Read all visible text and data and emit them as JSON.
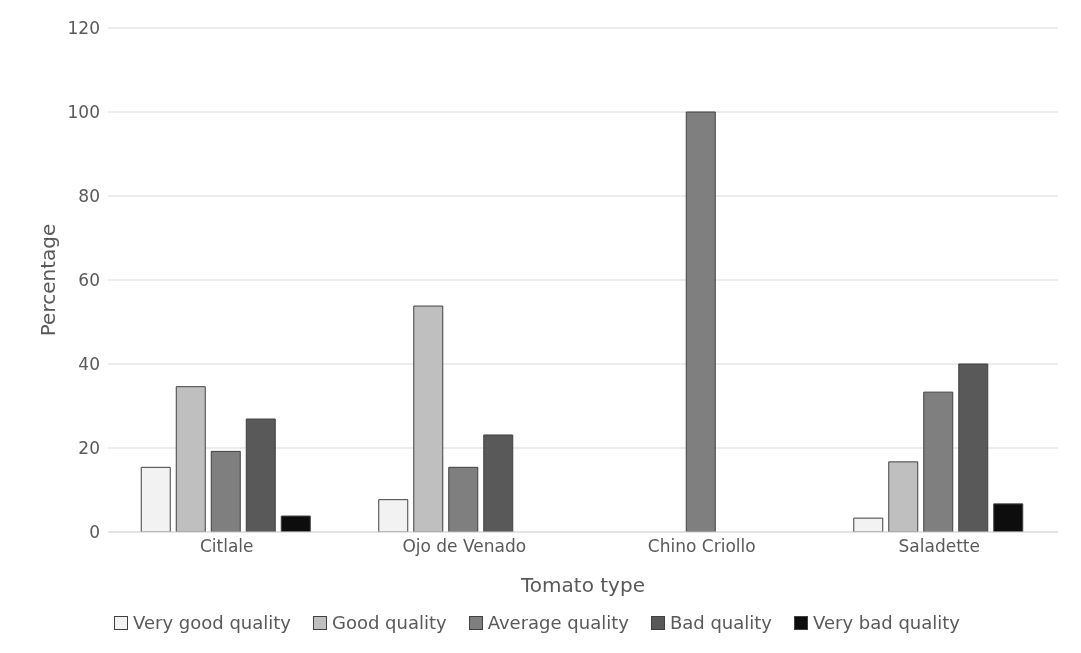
{
  "chart_data": {
    "type": "bar",
    "xlabel": "Tomato type",
    "ylabel": "Percentage",
    "categories": [
      "Citlale",
      "Ojo de Venado",
      "Chino Criollo",
      "Saladette"
    ],
    "series": [
      {
        "name": "Very good quality",
        "color": "#f2f2f2",
        "values": [
          15.4,
          7.7,
          0,
          3.3
        ]
      },
      {
        "name": "Good quality",
        "color": "#bfbfbf",
        "values": [
          34.6,
          53.8,
          0,
          16.7
        ]
      },
      {
        "name": "Average quality",
        "color": "#7f7f7f",
        "values": [
          19.2,
          15.4,
          100,
          33.3
        ]
      },
      {
        "name": "Bad quality",
        "color": "#595959",
        "values": [
          26.9,
          23.1,
          0,
          40
        ]
      },
      {
        "name": "Very bad quality",
        "color": "#0d0d0d",
        "values": [
          3.8,
          0,
          0,
          6.7
        ]
      }
    ],
    "ylim": [
      0,
      120
    ],
    "yticks": [
      0,
      20,
      40,
      60,
      80,
      100,
      120
    ],
    "grid": "y",
    "legend": "bottom"
  }
}
